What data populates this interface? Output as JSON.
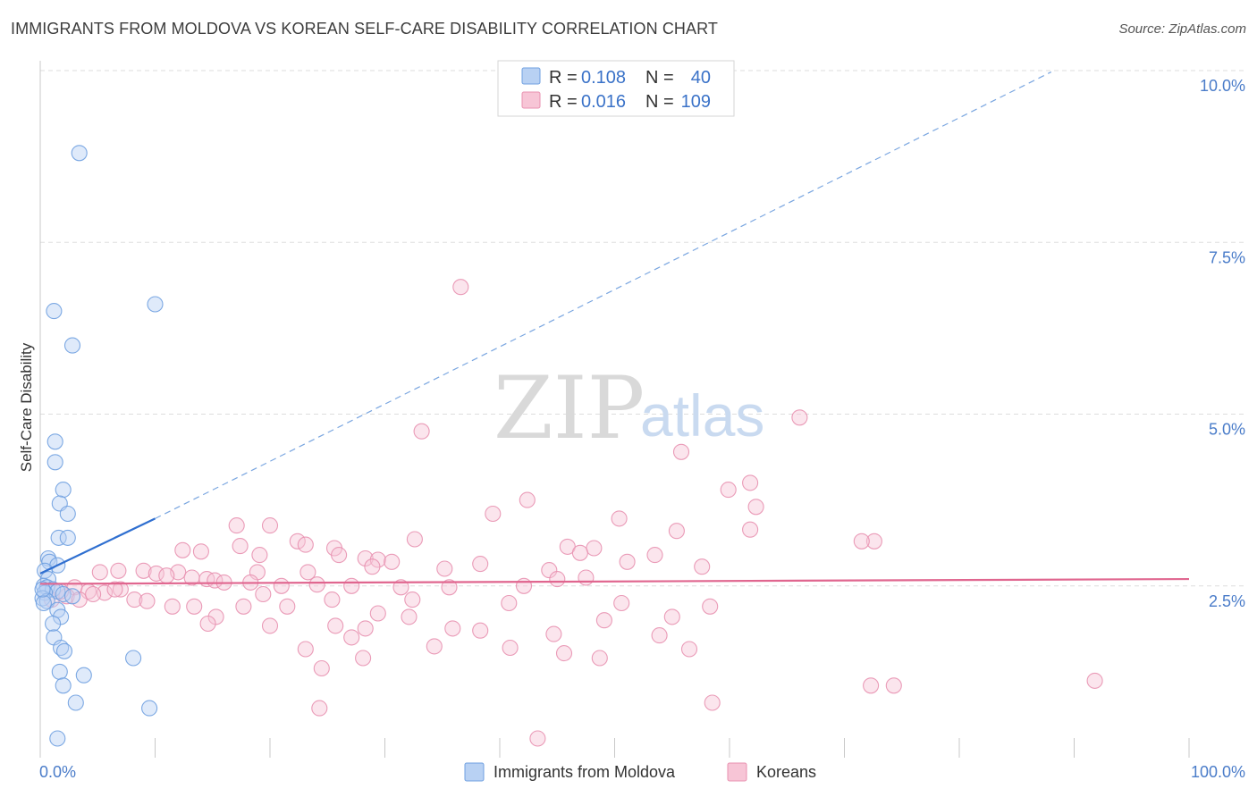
{
  "title": "IMMIGRANTS FROM MOLDOVA VS KOREAN SELF-CARE DISABILITY CORRELATION CHART",
  "source": "Source: ZipAtlas.com",
  "watermark": {
    "zip": "ZIP",
    "atlas": "atlas"
  },
  "stats": [
    {
      "r_label": "R =",
      "r_value": "0.108",
      "n_label": "N =",
      "n_value": "40",
      "color": "#6fa0e0",
      "fill": "#b8d1f3"
    },
    {
      "r_label": "R =",
      "r_value": "0.016",
      "n_label": "N =",
      "n_value": "109",
      "color": "#e891b0",
      "fill": "#f7c5d6"
    }
  ],
  "chart_data": {
    "type": "scatter",
    "title": "IMMIGRANTS FROM MOLDOVA VS KOREAN SELF-CARE DISABILITY CORRELATION CHART",
    "xlabel": "",
    "ylabel": "Self-Care Disability",
    "xlim": [
      0,
      100
    ],
    "ylim": [
      0,
      10
    ],
    "x_tick_labels": [
      "0.0%",
      "100.0%"
    ],
    "y_ticks": [
      2.5,
      5.0,
      7.5,
      10.0
    ],
    "y_tick_labels": [
      "2.5%",
      "5.0%",
      "7.5%",
      "10.0%"
    ],
    "grid": true,
    "legend_position": "bottom-center",
    "series": [
      {
        "name": "Immigrants from Moldova",
        "color": "#6fa0e0",
        "fill": "#b8d1f3",
        "trend": {
          "x0": 0,
          "y0": 2.68,
          "x1": 10,
          "y1": 3.48,
          "dashed_to_x": 88,
          "dashed_to_y": 9.98,
          "line_color": "#2f6fd0"
        },
        "points": [
          [
            3.4,
            8.8
          ],
          [
            10,
            6.6
          ],
          [
            1.2,
            6.5
          ],
          [
            2.8,
            6.0
          ],
          [
            1.3,
            4.6
          ],
          [
            1.3,
            4.3
          ],
          [
            2.0,
            3.9
          ],
          [
            1.7,
            3.7
          ],
          [
            2.4,
            3.55
          ],
          [
            1.6,
            3.2
          ],
          [
            2.4,
            3.2
          ],
          [
            0.7,
            2.9
          ],
          [
            0.8,
            2.85
          ],
          [
            1.5,
            2.8
          ],
          [
            0.4,
            2.72
          ],
          [
            0.7,
            2.6
          ],
          [
            0.3,
            2.5
          ],
          [
            0.6,
            2.48
          ],
          [
            1.1,
            2.45
          ],
          [
            1.5,
            2.42
          ],
          [
            0.4,
            2.4
          ],
          [
            2.0,
            2.38
          ],
          [
            0.2,
            2.32
          ],
          [
            0.6,
            2.28
          ],
          [
            0.3,
            2.25
          ],
          [
            1.5,
            2.15
          ],
          [
            1.8,
            2.05
          ],
          [
            1.1,
            1.95
          ],
          [
            1.2,
            1.75
          ],
          [
            1.8,
            1.6
          ],
          [
            2.1,
            1.55
          ],
          [
            8.1,
            1.45
          ],
          [
            1.7,
            1.25
          ],
          [
            3.8,
            1.2
          ],
          [
            2.0,
            1.05
          ],
          [
            3.1,
            0.8
          ],
          [
            9.5,
            0.72
          ],
          [
            1.5,
            0.28
          ],
          [
            0.2,
            2.45
          ],
          [
            2.8,
            2.35
          ]
        ]
      },
      {
        "name": "Koreans",
        "color": "#e891b0",
        "fill": "#f7c5d6",
        "trend": {
          "x0": 0,
          "y0": 2.53,
          "x1": 100,
          "y1": 2.6,
          "line_color": "#e0668f"
        },
        "points": [
          [
            36.6,
            6.85
          ],
          [
            66.1,
            4.95
          ],
          [
            33.2,
            4.75
          ],
          [
            55.8,
            4.45
          ],
          [
            61.8,
            4.0
          ],
          [
            59.9,
            3.9
          ],
          [
            62.3,
            3.65
          ],
          [
            42.4,
            3.75
          ],
          [
            39.4,
            3.55
          ],
          [
            50.4,
            3.48
          ],
          [
            17.1,
            3.38
          ],
          [
            20.0,
            3.38
          ],
          [
            61.8,
            3.32
          ],
          [
            72.6,
            3.15
          ],
          [
            32.6,
            3.18
          ],
          [
            22.4,
            3.15
          ],
          [
            23.1,
            3.1
          ],
          [
            17.4,
            3.08
          ],
          [
            45.9,
            3.07
          ],
          [
            48.2,
            3.05
          ],
          [
            55.4,
            3.3
          ],
          [
            25.6,
            3.05
          ],
          [
            12.4,
            3.02
          ],
          [
            14.0,
            3.0
          ],
          [
            47.0,
            2.98
          ],
          [
            53.5,
            2.95
          ],
          [
            19.1,
            2.95
          ],
          [
            26.0,
            2.95
          ],
          [
            28.3,
            2.9
          ],
          [
            29.4,
            2.88
          ],
          [
            30.6,
            2.85
          ],
          [
            51.1,
            2.85
          ],
          [
            38.3,
            2.82
          ],
          [
            28.9,
            2.78
          ],
          [
            57.6,
            2.78
          ],
          [
            35.2,
            2.75
          ],
          [
            44.3,
            2.73
          ],
          [
            23.3,
            2.7
          ],
          [
            6.8,
            2.72
          ],
          [
            5.2,
            2.7
          ],
          [
            9.0,
            2.72
          ],
          [
            10.1,
            2.68
          ],
          [
            12.0,
            2.7
          ],
          [
            18.9,
            2.7
          ],
          [
            11.0,
            2.65
          ],
          [
            13.2,
            2.62
          ],
          [
            14.5,
            2.6
          ],
          [
            15.2,
            2.58
          ],
          [
            16.0,
            2.55
          ],
          [
            18.3,
            2.55
          ],
          [
            21.0,
            2.5
          ],
          [
            24.1,
            2.52
          ],
          [
            27.1,
            2.5
          ],
          [
            31.4,
            2.48
          ],
          [
            35.6,
            2.48
          ],
          [
            42.1,
            2.5
          ],
          [
            45.0,
            2.6
          ],
          [
            47.5,
            2.62
          ],
          [
            3.0,
            2.48
          ],
          [
            4.2,
            2.42
          ],
          [
            7.0,
            2.45
          ],
          [
            5.6,
            2.4
          ],
          [
            2.3,
            2.35
          ],
          [
            1.0,
            2.3
          ],
          [
            3.4,
            2.3
          ],
          [
            8.2,
            2.3
          ],
          [
            6.5,
            2.45
          ],
          [
            19.4,
            2.38
          ],
          [
            25.4,
            2.3
          ],
          [
            32.4,
            2.3
          ],
          [
            40.8,
            2.25
          ],
          [
            50.6,
            2.25
          ],
          [
            11.5,
            2.2
          ],
          [
            13.4,
            2.2
          ],
          [
            17.7,
            2.2
          ],
          [
            21.5,
            2.2
          ],
          [
            58.3,
            2.2
          ],
          [
            29.4,
            2.1
          ],
          [
            32.1,
            2.05
          ],
          [
            49.1,
            2.0
          ],
          [
            55.0,
            2.05
          ],
          [
            15.3,
            2.05
          ],
          [
            14.6,
            1.95
          ],
          [
            20.0,
            1.92
          ],
          [
            25.7,
            1.92
          ],
          [
            28.3,
            1.88
          ],
          [
            35.9,
            1.88
          ],
          [
            38.3,
            1.85
          ],
          [
            44.7,
            1.8
          ],
          [
            27.1,
            1.75
          ],
          [
            53.9,
            1.78
          ],
          [
            34.3,
            1.62
          ],
          [
            40.9,
            1.6
          ],
          [
            23.1,
            1.58
          ],
          [
            56.5,
            1.58
          ],
          [
            45.6,
            1.52
          ],
          [
            48.7,
            1.45
          ],
          [
            28.1,
            1.45
          ],
          [
            24.5,
            1.3
          ],
          [
            72.3,
            1.05
          ],
          [
            74.3,
            1.05
          ],
          [
            91.8,
            1.12
          ],
          [
            58.5,
            0.8
          ],
          [
            24.3,
            0.72
          ],
          [
            43.3,
            0.28
          ],
          [
            71.5,
            3.15
          ],
          [
            1.8,
            2.42
          ],
          [
            4.6,
            2.38
          ],
          [
            9.3,
            2.28
          ]
        ]
      }
    ]
  }
}
